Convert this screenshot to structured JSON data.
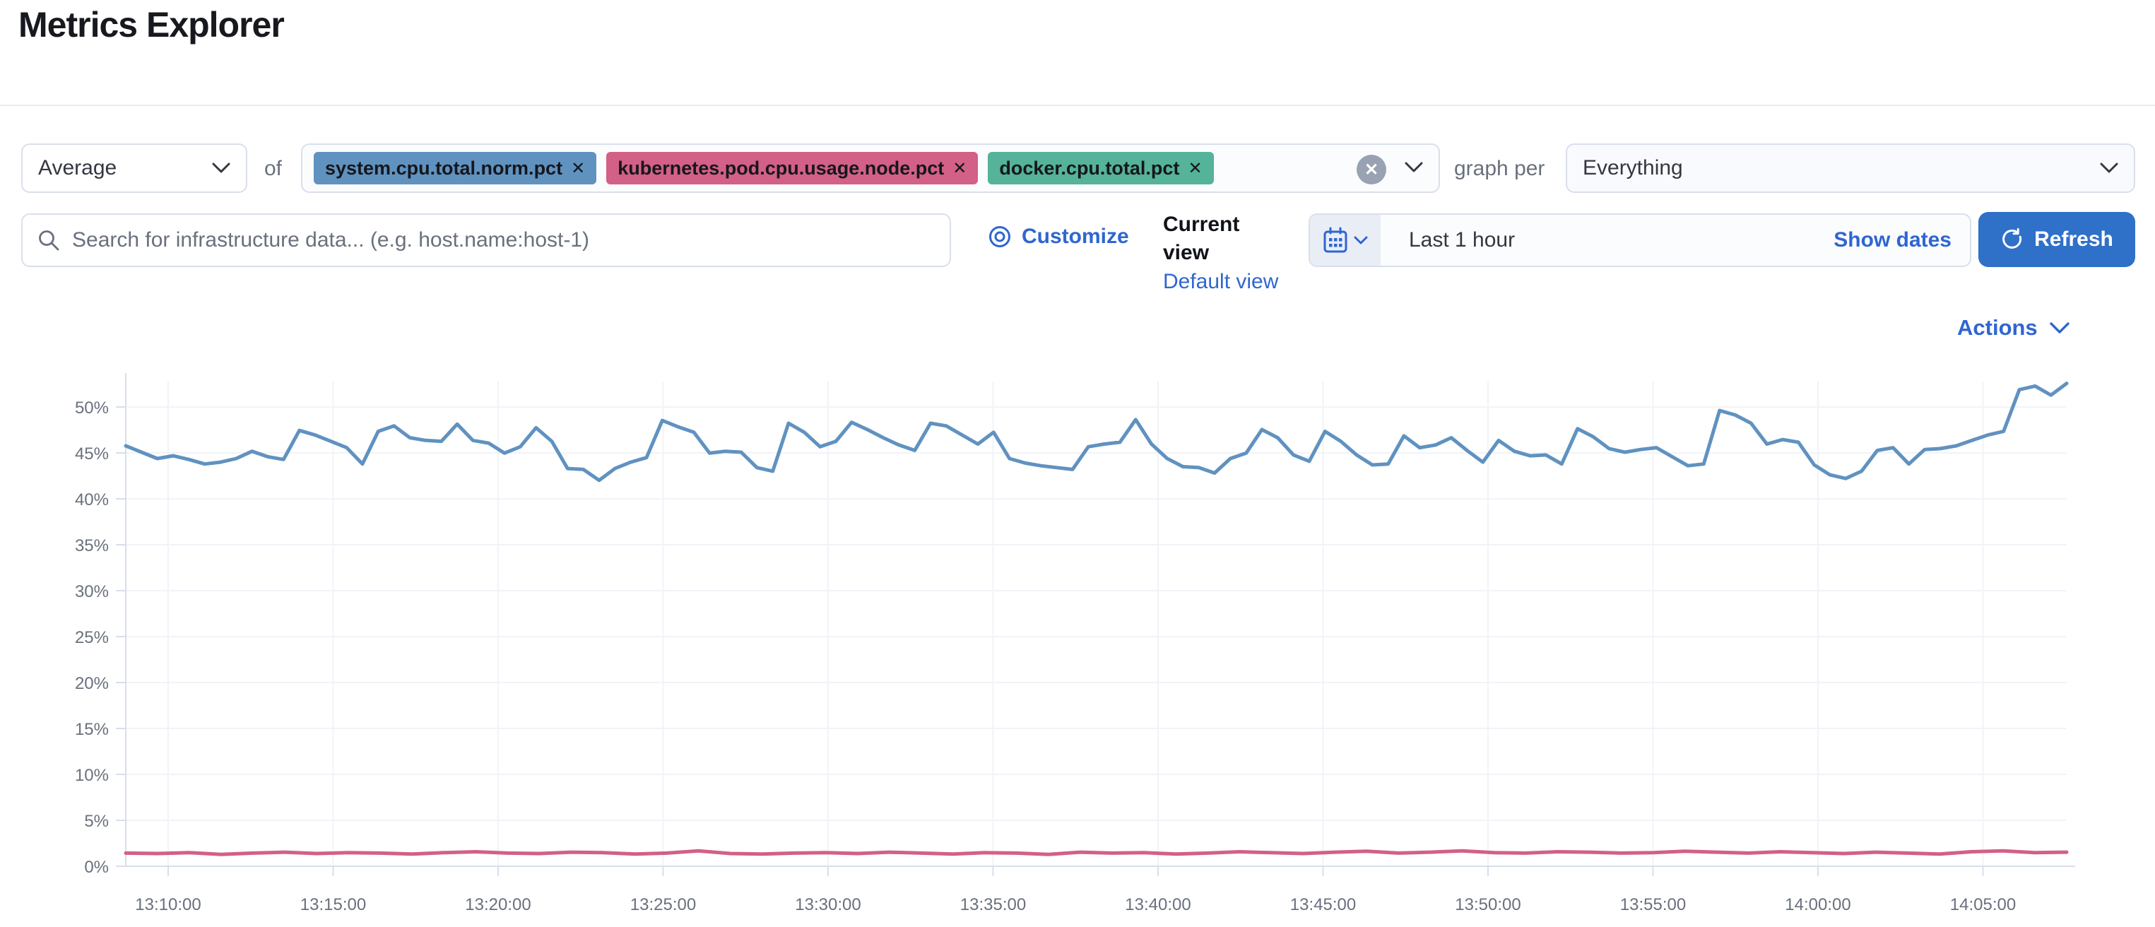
{
  "page": {
    "title": "Metrics Explorer"
  },
  "ui": {
    "close_glyph": "✕"
  },
  "colors": {
    "accent_link": "#2f66d0",
    "refresh_button": "#2f70c9",
    "tag_blue": "#6092C0",
    "tag_pink": "#D36086",
    "tag_green": "#54B399",
    "axis_text": "#69707d",
    "grid_line": "#f1f3f8",
    "axis_line": "#d8deea"
  },
  "toolbar": {
    "aggregation": {
      "value": "Average"
    },
    "of_label": "of",
    "metrics": [
      {
        "label": "system.cpu.total.norm.pct",
        "color": "#6092C0"
      },
      {
        "label": "kubernetes.pod.cpu.usage.node.pct",
        "color": "#D36086"
      },
      {
        "label": "docker.cpu.total.pct",
        "color": "#54B399"
      }
    ],
    "graph_per_label": "graph per",
    "group_by": {
      "value": "Everything"
    }
  },
  "search": {
    "placeholder": "Search for infrastructure data... (e.g. host.name:host-1)",
    "customize_label": "Customize"
  },
  "views": {
    "current_label": "Current view",
    "default_label": "Default view"
  },
  "timepicker": {
    "value": "Last 1 hour",
    "show_dates_label": "Show dates",
    "refresh_label": "Refresh"
  },
  "actions_label": "Actions",
  "chart_data": {
    "type": "line",
    "title": "",
    "xlabel": "",
    "ylabel": "",
    "grid": true,
    "legend_position": "none",
    "x_axis": {
      "start": "13:08:30",
      "end": "14:07:00",
      "tick_labels": [
        "13:10:00",
        "13:15:00",
        "13:20:00",
        "13:25:00",
        "13:30:00",
        "13:35:00",
        "13:40:00",
        "13:45:00",
        "13:50:00",
        "13:55:00",
        "14:00:00",
        "14:05:00"
      ]
    },
    "y_axis": {
      "min": 0,
      "max": 53.5,
      "unit": "%",
      "tick_labels": [
        "0%",
        "5%",
        "10%",
        "15%",
        "20%",
        "25%",
        "30%",
        "35%",
        "40%",
        "45%",
        "50%"
      ]
    },
    "series": [
      {
        "name": "system.cpu.total.norm.pct (Average)",
        "color": "#6092C0",
        "unit": "%",
        "values": [
          46.4,
          45.7,
          45.0,
          45.3,
          44.9,
          44.4,
          44.6,
          45.0,
          45.8,
          45.2,
          44.9,
          48.1,
          47.6,
          46.9,
          46.2,
          44.4,
          48.0,
          48.6,
          47.3,
          47.0,
          46.9,
          48.8,
          47.0,
          46.7,
          45.6,
          46.3,
          48.4,
          46.9,
          43.9,
          43.8,
          42.6,
          43.9,
          44.6,
          45.1,
          49.2,
          48.5,
          47.9,
          45.6,
          45.8,
          45.7,
          44.0,
          43.6,
          48.9,
          47.9,
          46.3,
          46.9,
          49.0,
          48.2,
          47.3,
          46.5,
          45.9,
          48.9,
          48.6,
          47.6,
          46.6,
          47.9,
          45.0,
          44.5,
          44.2,
          44.0,
          43.8,
          46.3,
          46.6,
          46.8,
          49.3,
          46.6,
          45.0,
          44.1,
          44.0,
          43.4,
          45.0,
          45.6,
          48.2,
          47.3,
          45.4,
          44.7,
          48.0,
          46.9,
          45.4,
          44.3,
          44.4,
          47.5,
          46.2,
          46.5,
          47.3,
          45.9,
          44.6,
          47.0,
          45.8,
          45.3,
          45.4,
          44.4,
          48.3,
          47.4,
          46.1,
          45.7,
          46.0,
          46.2,
          45.2,
          44.2,
          44.4,
          50.3,
          49.8,
          48.9,
          46.6,
          47.1,
          46.8,
          44.3,
          43.2,
          42.8,
          43.6,
          45.9,
          46.2,
          44.4,
          46.0,
          46.1,
          46.4,
          47.0,
          47.6,
          48.0,
          52.6,
          53.0,
          52.0,
          53.3
        ]
      },
      {
        "name": "kubernetes.pod.cpu.usage.node.pct (Average)",
        "color": "#D36086",
        "unit": "%",
        "values": [
          1.45,
          1.4,
          1.5,
          1.3,
          1.45,
          1.55,
          1.4,
          1.5,
          1.45,
          1.35,
          1.5,
          1.6,
          1.45,
          1.4,
          1.55,
          1.5,
          1.35,
          1.45,
          1.7,
          1.4,
          1.35,
          1.45,
          1.5,
          1.4,
          1.55,
          1.45,
          1.35,
          1.5,
          1.45,
          1.3,
          1.55,
          1.45,
          1.5,
          1.35,
          1.45,
          1.6,
          1.5,
          1.4,
          1.55,
          1.65,
          1.45,
          1.55,
          1.7,
          1.5,
          1.45,
          1.6,
          1.55,
          1.45,
          1.5,
          1.65,
          1.55,
          1.45,
          1.6,
          1.5,
          1.4,
          1.55,
          1.45,
          1.35,
          1.6,
          1.7,
          1.5,
          1.55
        ]
      }
    ]
  }
}
